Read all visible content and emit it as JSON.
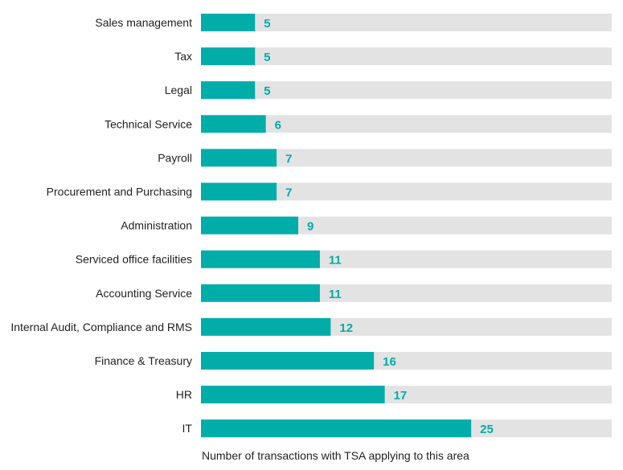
{
  "chart_data": {
    "type": "bar",
    "orientation": "horizontal",
    "categories": [
      "Sales management",
      "Tax",
      "Legal",
      "Technical Service",
      "Payroll",
      "Procurement and Purchasing",
      "Administration",
      "Serviced office facilities",
      "Accounting Service",
      "Internal Audit, Compliance and RMS",
      "Finance & Treasury",
      "HR",
      "IT"
    ],
    "values": [
      5,
      5,
      5,
      6,
      7,
      7,
      9,
      11,
      11,
      12,
      16,
      17,
      25
    ],
    "xlim": [
      0,
      38
    ],
    "title": "",
    "xlabel": "Number of transactions with TSA applying to this area",
    "ylabel": "",
    "grid": false,
    "data_labels": true
  },
  "colors": {
    "bar": "#00ADA8",
    "track": "#E3E3E4",
    "value_text": "#00ADA8"
  }
}
